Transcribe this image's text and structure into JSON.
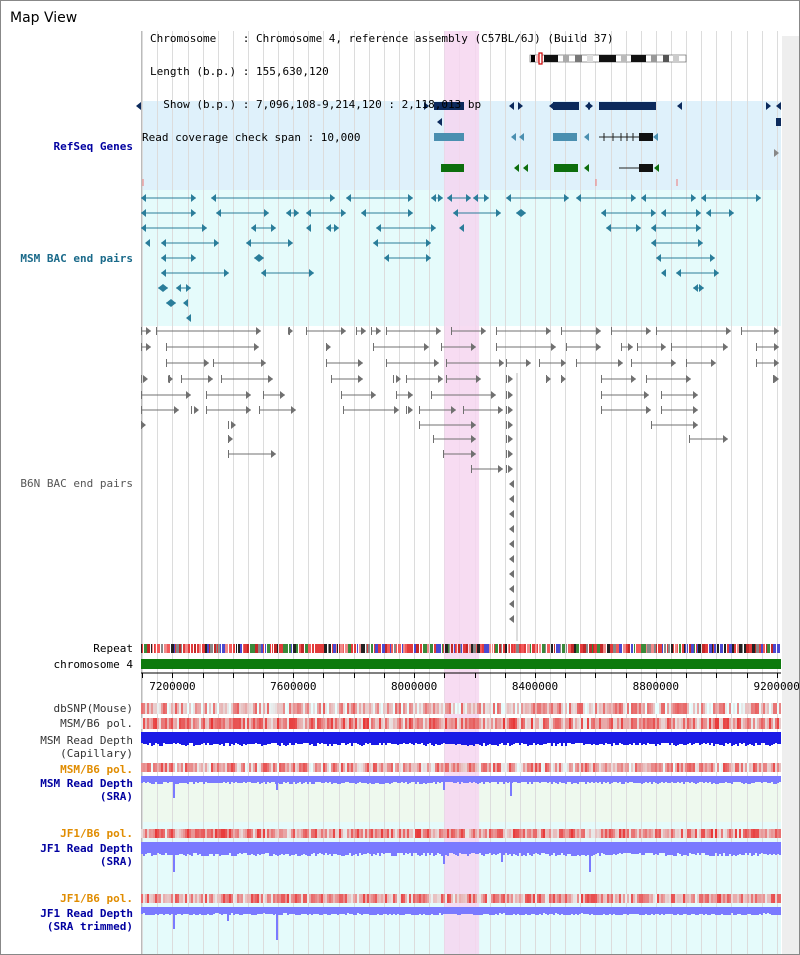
{
  "map_view_title": "Map View",
  "info": {
    "chromosome": "Chromosome    : Chromosome 4, reference assembly (C57BL/6J) (Build 37)",
    "length": "Length (b.p.) : 155,630,120",
    "show": "  Show (b.p.) : 7,096,108-9,214,120 : 2,118,013 bp",
    "coverage": "Read coverage check span : 10,000"
  },
  "tracks": {
    "refseq": "RefSeq Genes",
    "msm_bac": "MSM BAC end pairs",
    "b6n_bac": "B6N BAC end pairs",
    "repeat": "Repeat",
    "chromosome": "chromosome 4",
    "dbsnp": "dbSNP(Mouse)",
    "msm_b6_pol": "MSM/B6 pol.",
    "msm_read_cap_1": "MSM Read Depth",
    "msm_read_cap_2": "(Capillary)",
    "msm_b6_pol_2": "MSM/B6 pol.",
    "msm_read_sra_1": "MSM Read Depth",
    "msm_read_sra_2": "(SRA)",
    "jf1_b6_pol": "JF1/B6 pol.",
    "jf1_read_sra_1": "JF1 Read Depth",
    "jf1_read_sra_2": "(SRA)",
    "jf1_b6_pol_2": "JF1/B6 pol.",
    "jf1_read_trim_1": "JF1 Read Depth",
    "jf1_read_trim_2": "(SRA trimmed)"
  },
  "axis": {
    "ticks": [
      "7200000",
      "7600000",
      "8000000",
      "8400000",
      "8800000",
      "9200000"
    ]
  },
  "view": {
    "start_bp": 7096108,
    "end_bp": 9214120,
    "highlight_start_bp": 8100000,
    "highlight_end_bp": 8215000
  },
  "colors": {
    "refseq_bg": "#dff1fb",
    "msm_bg": "#e5fbfb",
    "highlight": "#f6d6f0",
    "gene_navy": "#0c2a5c",
    "gene_teal": "#4a8fb0",
    "gene_green": "#0d6e0d",
    "msm_bac": "#2a7d9a",
    "b6n_bac": "#707070",
    "chromosome_bar": "#0d7a0d",
    "depth_capillary": "#1a1ae6",
    "depth_sra": "#7a7aff",
    "pol_red": "#e83a3a",
    "label_blue": "#0000a0",
    "label_teal": "#1a6a8a",
    "label_orange": "#e08c00"
  }
}
